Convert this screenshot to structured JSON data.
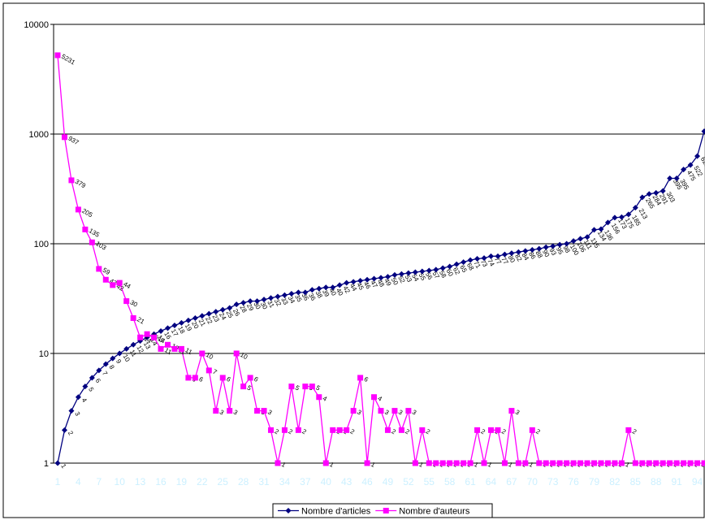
{
  "chart_data": {
    "type": "line",
    "log_scale": true,
    "grid": true,
    "legend": "bottom",
    "categories": [
      "1",
      null,
      null,
      "4",
      null,
      null,
      "7",
      null,
      null,
      "10",
      null,
      null,
      "13",
      null,
      null,
      "16",
      null,
      null,
      "19",
      null,
      null,
      "22",
      null,
      null,
      "25",
      null,
      null,
      "28",
      null,
      null,
      "31",
      null,
      null,
      "34",
      null,
      null,
      "37",
      null,
      null,
      "40",
      null,
      null,
      "43",
      null,
      null,
      "46",
      null,
      null,
      "49",
      null,
      null,
      "52",
      null,
      null,
      "55",
      null,
      null,
      "58",
      null,
      null,
      "61",
      null,
      null,
      "64",
      null,
      null,
      "67",
      null,
      null,
      "70",
      null,
      null,
      "73",
      null,
      null,
      "76",
      null,
      null,
      "79",
      null,
      null,
      "82",
      null,
      null,
      "85",
      null,
      null,
      "88",
      null,
      null,
      "91",
      null,
      null,
      "94",
      null
    ],
    "ylim": [
      1,
      10000
    ],
    "yticks": [
      1,
      10,
      100,
      1000,
      10000
    ],
    "series": [
      {
        "name": "Nombre d'articles",
        "color": "#000080",
        "marker": "diamond",
        "values": [
          1,
          2,
          3,
          4,
          5,
          6,
          7,
          8,
          9,
          10,
          11,
          12,
          13,
          14,
          15,
          16,
          17,
          18,
          19,
          20,
          21,
          22,
          23,
          24,
          25,
          26,
          28,
          29,
          30,
          30,
          31,
          32,
          33,
          34,
          35,
          36,
          36,
          38,
          39,
          40,
          40,
          42,
          44,
          45,
          46,
          47,
          48,
          49,
          50,
          52,
          53,
          54,
          55,
          56,
          57,
          58,
          60,
          62,
          65,
          68,
          71,
          73,
          74,
          77,
          77,
          80,
          82,
          84,
          86,
          88,
          90,
          93,
          95,
          98,
          100,
          106,
          111,
          115,
          134,
          136,
          156,
          173,
          175,
          185,
          213,
          265,
          284,
          291,
          303,
          395,
          395,
          475,
          522,
          629,
          1059
        ]
      },
      {
        "name": "Nombre d'auteurs",
        "color": "#ff00ff",
        "marker": "square",
        "values": [
          5231,
          937,
          379,
          205,
          135,
          103,
          59,
          47,
          42,
          44,
          30,
          21,
          14,
          15,
          14,
          11,
          12,
          11,
          11,
          6,
          6,
          10,
          7,
          3,
          6,
          3,
          10,
          5,
          6,
          3,
          3,
          2,
          1,
          2,
          5,
          2,
          5,
          5,
          4,
          1,
          2,
          2,
          2,
          3,
          6,
          1,
          4,
          3,
          2,
          3,
          2,
          3,
          1,
          2,
          1,
          1,
          1,
          1,
          1,
          1,
          1,
          2,
          1,
          2,
          2,
          1,
          3,
          1,
          1,
          2,
          1,
          1,
          1,
          1,
          1,
          1,
          1,
          1,
          1,
          1,
          1,
          1,
          1,
          2,
          1,
          1,
          1,
          1,
          1,
          1,
          1,
          1,
          1,
          1,
          1
        ]
      }
    ]
  }
}
